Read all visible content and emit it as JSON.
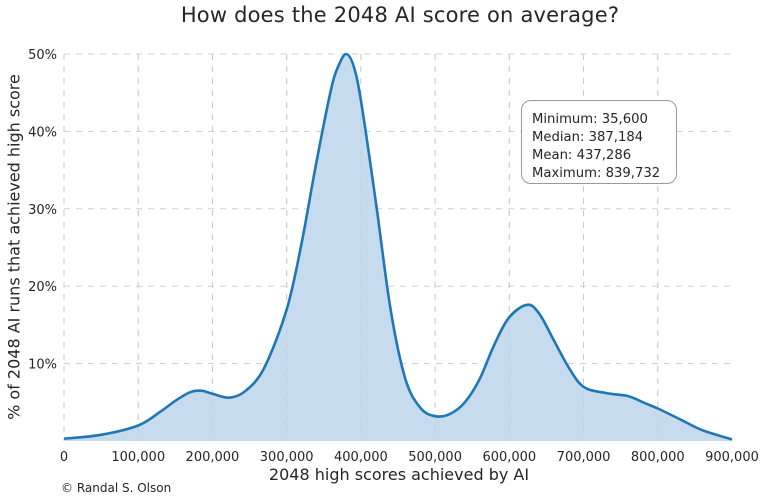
{
  "chart_data": {
    "type": "area",
    "title": "How does the 2048 AI score on average?",
    "xlabel": "2048 high scores achieved by AI",
    "ylabel": "% of 2048 AI runs that achieved high score",
    "xlim": [
      0,
      900000
    ],
    "ylim": [
      0,
      50
    ],
    "grid": true,
    "grid_style": "dashed",
    "x_ticks": [
      0,
      100000,
      200000,
      300000,
      400000,
      500000,
      600000,
      700000,
      800000,
      900000
    ],
    "x_tick_labels": [
      "0",
      "100,000",
      "200,000",
      "300,000",
      "400,000",
      "500,000",
      "600,000",
      "700,000",
      "800,000",
      "900,000"
    ],
    "y_ticks": [
      10,
      20,
      30,
      40,
      50
    ],
    "y_tick_labels": [
      "10%",
      "20%",
      "30%",
      "40%",
      "50%"
    ],
    "series": [
      {
        "name": "density",
        "line_color": "#1f77b4",
        "fill_color": "#c6dbed",
        "x": [
          0,
          50000,
          100000,
          130000,
          150000,
          170000,
          185000,
          200000,
          223000,
          245000,
          270000,
          300000,
          320000,
          340000,
          360000,
          370000,
          380000,
          390000,
          400000,
          420000,
          440000,
          460000,
          480000,
          500000,
          520000,
          540000,
          560000,
          580000,
          600000,
          624000,
          640000,
          660000,
          680000,
          700000,
          730000,
          760000,
          780000,
          800000,
          830000,
          860000,
          900000
        ],
        "y": [
          0.3,
          0.8,
          2.0,
          3.8,
          5.2,
          6.3,
          6.5,
          6.1,
          5.6,
          6.5,
          9.5,
          17.0,
          25.5,
          36.0,
          45.5,
          48.5,
          50.0,
          48.5,
          44.0,
          31.0,
          17.0,
          8.0,
          4.3,
          3.2,
          3.5,
          5.0,
          8.0,
          12.5,
          16.0,
          17.6,
          16.5,
          13.0,
          9.5,
          7.0,
          6.2,
          5.8,
          5.0,
          4.2,
          2.8,
          1.4,
          0.2
        ]
      }
    ],
    "annotation": {
      "lines": [
        "Minimum: 35,600",
        "Median: 387,184",
        "Mean: 437,286",
        "Maximum: 839,732"
      ],
      "position": "upper right"
    },
    "legend": null
  },
  "header": {
    "title": "How does the 2048 AI score on average?"
  },
  "axes": {
    "xlabel": "2048 high scores achieved by AI",
    "ylabel": "% of 2048 AI runs that achieved high score"
  },
  "stats_box": {
    "minimum": "Minimum: 35,600",
    "median": "Median: 387,184",
    "mean": "Mean: 437,286",
    "maximum": "Maximum: 839,732"
  },
  "footer": {
    "credit": "© Randal S. Olson"
  },
  "colors": {
    "line": "#1f77b4",
    "fill": "#c6dbed",
    "grid": "#cfcfcf",
    "text": "#262626"
  }
}
